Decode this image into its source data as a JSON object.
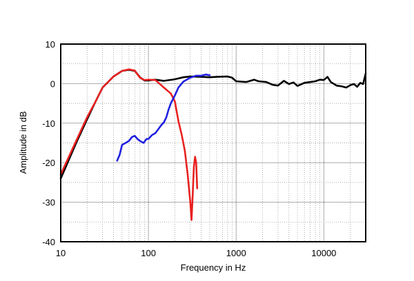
{
  "chart_data": {
    "type": "line",
    "xlabel": "Frequency in Hz",
    "ylabel": "Amplitude in dB",
    "xscale": "log",
    "xlim": [
      10,
      30000
    ],
    "ylim": [
      -40,
      10
    ],
    "xticks": [
      10,
      100,
      1000,
      10000
    ],
    "xtick_labels": [
      "10",
      "100",
      "1000",
      "10000"
    ],
    "yticks": [
      10,
      0,
      -10,
      -20,
      -30,
      -40
    ],
    "ytick_labels": [
      "10",
      "0",
      "-10",
      "-20",
      "-30",
      "-40"
    ],
    "grid": true,
    "legend": "none",
    "series": [
      {
        "color": "#000000",
        "points": [
          [
            10,
            -24
          ],
          [
            15,
            -15
          ],
          [
            20,
            -9
          ],
          [
            25,
            -4.5
          ],
          [
            30,
            -1
          ],
          [
            35,
            0.5
          ],
          [
            40,
            1.8
          ],
          [
            50,
            3.2
          ],
          [
            60,
            3.5
          ],
          [
            70,
            3.2
          ],
          [
            80,
            1.6
          ],
          [
            90,
            0.8
          ],
          [
            100,
            0.8
          ],
          [
            120,
            1.0
          ],
          [
            150,
            0.7
          ],
          [
            200,
            1.1
          ],
          [
            250,
            1.6
          ],
          [
            300,
            1.8
          ],
          [
            400,
            1.7
          ],
          [
            500,
            1.6
          ],
          [
            600,
            1.7
          ],
          [
            800,
            1.8
          ],
          [
            900,
            1.5
          ],
          [
            1000,
            0.6
          ],
          [
            1300,
            0.4
          ],
          [
            1600,
            1.0
          ],
          [
            1800,
            0.6
          ],
          [
            2200,
            0.4
          ],
          [
            2600,
            -0.3
          ],
          [
            3000,
            -0.5
          ],
          [
            3500,
            0.7
          ],
          [
            4000,
            -0.1
          ],
          [
            4500,
            0.3
          ],
          [
            5000,
            -0.6
          ],
          [
            6000,
            0.2
          ],
          [
            7000,
            0.4
          ],
          [
            8000,
            0.6
          ],
          [
            9000,
            1.0
          ],
          [
            10000,
            0.9
          ],
          [
            11000,
            1.7
          ],
          [
            12000,
            0.4
          ],
          [
            14000,
            -0.5
          ],
          [
            16000,
            -0.7
          ],
          [
            18000,
            -1.0
          ],
          [
            20000,
            -0.4
          ],
          [
            22000,
            -0.1
          ],
          [
            24000,
            -0.8
          ],
          [
            26000,
            0.2
          ],
          [
            28000,
            -0.1
          ],
          [
            29000,
            1.2
          ],
          [
            30000,
            2.6
          ]
        ]
      },
      {
        "color": "#e82020",
        "points": [
          [
            10,
            -23
          ],
          [
            15,
            -14.5
          ],
          [
            20,
            -8.5
          ],
          [
            25,
            -4.5
          ],
          [
            30,
            -1
          ],
          [
            35,
            0.5
          ],
          [
            40,
            1.8
          ],
          [
            50,
            3.2
          ],
          [
            60,
            3.6
          ],
          [
            70,
            3.3
          ],
          [
            80,
            1.5
          ],
          [
            90,
            0.9
          ],
          [
            100,
            1.0
          ],
          [
            120,
            0.9
          ],
          [
            150,
            -1.0
          ],
          [
            180,
            -2.5
          ],
          [
            200,
            -4.5
          ],
          [
            220,
            -9.5
          ],
          [
            240,
            -13
          ],
          [
            260,
            -17
          ],
          [
            280,
            -23
          ],
          [
            300,
            -30
          ],
          [
            310,
            -34.5
          ],
          [
            320,
            -28
          ],
          [
            330,
            -21
          ],
          [
            340,
            -18.5
          ],
          [
            350,
            -20
          ],
          [
            360,
            -26.5
          ]
        ]
      },
      {
        "color": "#2020e0",
        "points": [
          [
            44,
            -19.5
          ],
          [
            47,
            -18
          ],
          [
            50,
            -15.5
          ],
          [
            55,
            -15
          ],
          [
            60,
            -14.5
          ],
          [
            65,
            -13.5
          ],
          [
            70,
            -13.2
          ],
          [
            75,
            -14
          ],
          [
            80,
            -14.5
          ],
          [
            88,
            -15
          ],
          [
            95,
            -14
          ],
          [
            100,
            -14
          ],
          [
            110,
            -13
          ],
          [
            120,
            -12.5
          ],
          [
            130,
            -11.5
          ],
          [
            140,
            -10.5
          ],
          [
            150,
            -9.8
          ],
          [
            160,
            -8.5
          ],
          [
            170,
            -6.5
          ],
          [
            180,
            -5
          ],
          [
            200,
            -3
          ],
          [
            220,
            -1
          ],
          [
            250,
            0.5
          ],
          [
            300,
            1.5
          ],
          [
            350,
            2
          ],
          [
            400,
            2
          ],
          [
            450,
            2.3
          ],
          [
            500,
            2.1
          ]
        ]
      }
    ]
  }
}
